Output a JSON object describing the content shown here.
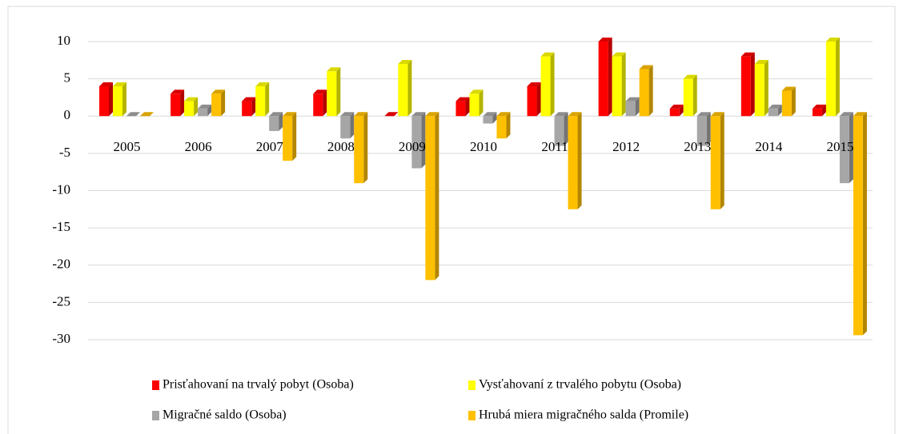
{
  "chart_data": {
    "type": "bar3d",
    "categories": [
      "2005",
      "2006",
      "2007",
      "2008",
      "2009",
      "2010",
      "2011",
      "2012",
      "2013",
      "2014",
      "2015"
    ],
    "series": [
      {
        "name": "Prisťahovaní na trvalý pobyt (Osoba)",
        "color": "#ff0000",
        "values": [
          4,
          3,
          2,
          3,
          0,
          2,
          4,
          10,
          1,
          8,
          1
        ]
      },
      {
        "name": "Vysťahovaní z trvalého pobytu (Osoba)",
        "color": "#ffff00",
        "values": [
          4,
          2,
          4,
          6,
          7,
          3,
          8,
          8,
          5,
          7,
          10
        ]
      },
      {
        "name": "Migračné saldo (Osoba)",
        "color": "#a6a6a6",
        "values": [
          0,
          1,
          -2,
          -3,
          -7,
          -1,
          -4,
          2,
          -4,
          1,
          -9
        ]
      },
      {
        "name": "Hrubá miera migračného salda (Promile)",
        "color": "#ffc000",
        "values": [
          0,
          3,
          -6,
          -9,
          -22,
          -3,
          -12.5,
          6.3,
          -12.5,
          3.4,
          -29.4
        ]
      }
    ],
    "ylim": [
      -30,
      10
    ],
    "yticks": [
      -30,
      -25,
      -20,
      -15,
      -10,
      -5,
      0,
      5,
      10
    ],
    "grid": true
  }
}
